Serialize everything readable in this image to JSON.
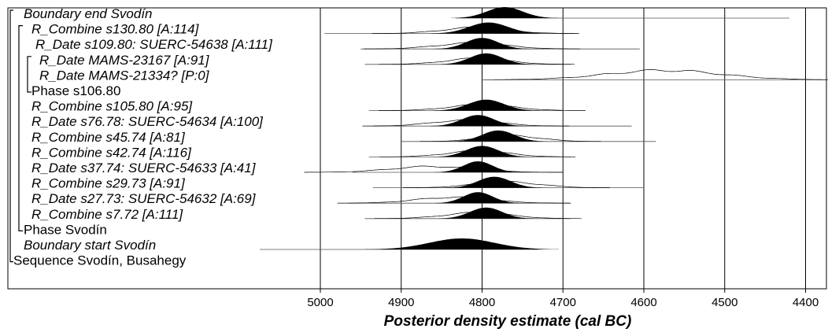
{
  "chart_data": {
    "type": "oxcal_multiplot",
    "xlabel": "Posterior density estimate (cal BC)",
    "xlim": [
      5000,
      4375
    ],
    "xticks": [
      5000,
      4900,
      4800,
      4700,
      4600,
      4500,
      4400
    ],
    "grid": "vertical lines at tick positions",
    "rows": [
      {
        "label": "Boundary end Svodín",
        "italic": true,
        "range": [
          4833,
          4420
        ],
        "mode": 4772,
        "spread": 22,
        "likelihood": null
      },
      {
        "label": "R_Combine s130.80 [A:114]",
        "italic": true,
        "range": [
          4995,
          4685
        ],
        "mode": 4792,
        "spread": 24,
        "likelihood": {
          "mode": 4808,
          "spread": 40,
          "peak": 0.5
        }
      },
      {
        "label": "R_Date s109.80: SUERC-54638 [A:111]",
        "italic": true,
        "range": [
          4950,
          4605
        ],
        "mode": 4800,
        "spread": 20,
        "likelihood": {
          "mode": 4812,
          "spread": 42,
          "peak": 0.5
        }
      },
      {
        "label": "R_Date MAMS-23167 [A:91]",
        "italic": true,
        "range": [
          4945,
          4690
        ],
        "mode": 4795,
        "spread": 20,
        "likelihood": {
          "mode": 4806,
          "spread": 38,
          "peak": 0.5
        }
      },
      {
        "label": "R_Date MAMS-21334? [P:0]",
        "italic": true,
        "range": [
          4785,
          4375
        ],
        "mode": null,
        "spread": null,
        "likelihood": {
          "mode": 4575,
          "spread": 70,
          "peak": 0.8
        }
      },
      {
        "label": "Phase s106.80",
        "italic": false,
        "range": null,
        "mode": null,
        "spread": null,
        "likelihood": null
      },
      {
        "label": "R_Combine s105.80 [A:95]",
        "italic": true,
        "range": [
          4940,
          4700
        ],
        "mode": 4795,
        "spread": 22,
        "likelihood": {
          "mode": 4800,
          "spread": 40,
          "peak": 0.5
        }
      },
      {
        "label": "R_Date s76.78: SUERC-54634 [A:100]",
        "italic": true,
        "range": [
          4935,
          4615
        ],
        "mode": 4805,
        "spread": 20,
        "likelihood": {
          "mode": 4820,
          "spread": 40,
          "peak": 0.5
        }
      },
      {
        "label": "R_Combine s45.74 [A:81]",
        "italic": true,
        "range": [
          4900,
          4585
        ],
        "mode": 4780,
        "spread": 20,
        "likelihood": {
          "mode": 4765,
          "spread": 35,
          "peak": 0.5
        }
      },
      {
        "label": "R_Combine s42.74 [A:116]",
        "italic": true,
        "range": [
          4940,
          4690
        ],
        "mode": 4800,
        "spread": 20,
        "likelihood": {
          "mode": 4805,
          "spread": 38,
          "peak": 0.5
        }
      },
      {
        "label": "R_Date s37.74: SUERC-54633 [A:41]",
        "italic": true,
        "range": [
          4960,
          4700
        ],
        "mode": 4805,
        "spread": 18,
        "likelihood": {
          "mode": 4860,
          "spread": 50,
          "peak": 0.5
        }
      },
      {
        "label": "R_Combine s29.73 [A:91]",
        "italic": true,
        "range": [
          4935,
          4600
        ],
        "mode": 4785,
        "spread": 20,
        "likelihood": {
          "mode": 4770,
          "spread": 40,
          "peak": 0.5
        }
      },
      {
        "label": "R_Date s27.73: SUERC-54632 [A:69]",
        "italic": true,
        "range": [
          4965,
          4690
        ],
        "mode": 4805,
        "spread": 18,
        "likelihood": {
          "mode": 4835,
          "spread": 45,
          "peak": 0.5
        }
      },
      {
        "label": "R_Combine s7.72 [A:111]",
        "italic": true,
        "range": [
          4945,
          4690
        ],
        "mode": 4795,
        "spread": 20,
        "likelihood": {
          "mode": 4805,
          "spread": 40,
          "peak": 0.5
        }
      },
      {
        "label": "Phase Svodín",
        "italic": false,
        "range": null,
        "mode": null,
        "spread": null,
        "likelihood": null
      },
      {
        "label": "Boundary start Svodín",
        "italic": true,
        "range": [
          5075,
          4730
        ],
        "mode": 4825,
        "spread": 40,
        "likelihood": null
      },
      {
        "label": "Sequence Svodín, Busahegy",
        "italic": false,
        "range": null,
        "mode": null,
        "spread": null,
        "likelihood": null
      }
    ]
  }
}
